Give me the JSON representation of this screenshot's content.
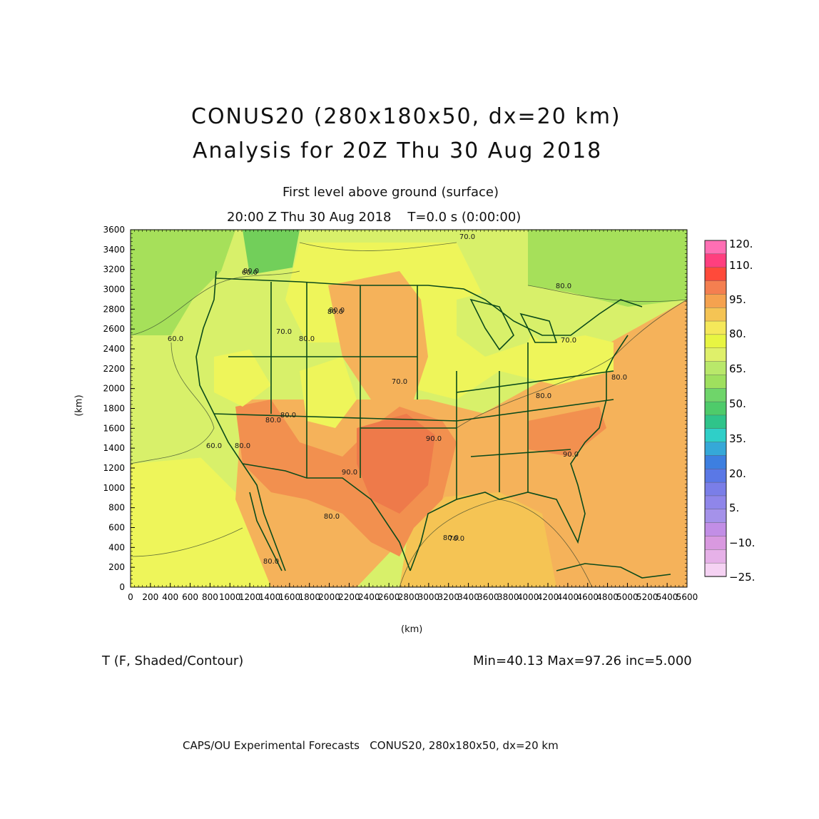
{
  "title": {
    "line1": "CONUS20 (280x180x50, dx=20 km)",
    "line2": "Analysis for 20Z Thu 30 Aug 2018"
  },
  "subtitle": {
    "level": "First level above ground (surface)",
    "time": "20:00 Z Thu 30 Aug 2018    T=0.0 s (0:00:00)"
  },
  "axes": {
    "x_label": "(km)",
    "y_label": "(km)",
    "x_ticks": [
      "0",
      "200",
      "400",
      "600",
      "800",
      "1000",
      "1200",
      "1400",
      "1600",
      "1800",
      "2000",
      "2200",
      "2400",
      "2600",
      "2800",
      "3000",
      "3200",
      "3400",
      "3600",
      "3800",
      "4000",
      "4200",
      "4400",
      "4600",
      "4800",
      "5000",
      "5200",
      "5400",
      "5600"
    ],
    "y_ticks": [
      "0",
      "200",
      "400",
      "600",
      "800",
      "1000",
      "1200",
      "1400",
      "1600",
      "1800",
      "2000",
      "2200",
      "2400",
      "2600",
      "2800",
      "3000",
      "3200",
      "3400",
      "3600"
    ]
  },
  "colorbar": {
    "labels": [
      "120.",
      "110.",
      "95.",
      "80.",
      "65.",
      "50.",
      "35.",
      "20.",
      "5.",
      "−10.",
      "−25."
    ],
    "colors": [
      "#ff6fb4",
      "#ff3f7f",
      "#ff4a3a",
      "#f47f50",
      "#f5a24f",
      "#f5c454",
      "#f5e85a",
      "#e8f542",
      "#dff06a",
      "#b9e86a",
      "#9fe05e",
      "#6fd56a",
      "#4ecb6a",
      "#2fc48a",
      "#2fcfc8",
      "#35a8d8",
      "#3d7fe0",
      "#5a78e6",
      "#7a7ee8",
      "#8f86ea",
      "#a592ea",
      "#c28ee6",
      "#d999e0",
      "#e6b1e8",
      "#f5d2f3"
    ]
  },
  "contour_labels": [
    "70.0",
    "80.0",
    "80.0",
    "60.0",
    "70.0",
    "80.0",
    "70.0",
    "80.0",
    "60.0",
    "80.0",
    "80.0",
    "80.0",
    "90.0",
    "80.0",
    "70.0",
    "90.0",
    "80.0",
    "80.0",
    "90.0",
    "80.0",
    "80.0",
    "70.0",
    "60.0",
    "80.0"
  ],
  "map_colors": {
    "green_dark": "#72cf5a",
    "green": "#a6e05a",
    "yellow_green": "#d8f06a",
    "yellow": "#eef55a",
    "light_orange": "#f5d35a",
    "orange": "#f5b25a",
    "dark_orange": "#f2904f",
    "red_orange": "#ee7a4a",
    "border": "#0b4a1a"
  },
  "footer": {
    "field": "T (F, Shaded/Contour)",
    "stats": "Min=40.13 Max=97.26 inc=5.000",
    "credit": "CAPS/OU Experimental Forecasts   CONUS20, 280x180x50, dx=20 km"
  }
}
